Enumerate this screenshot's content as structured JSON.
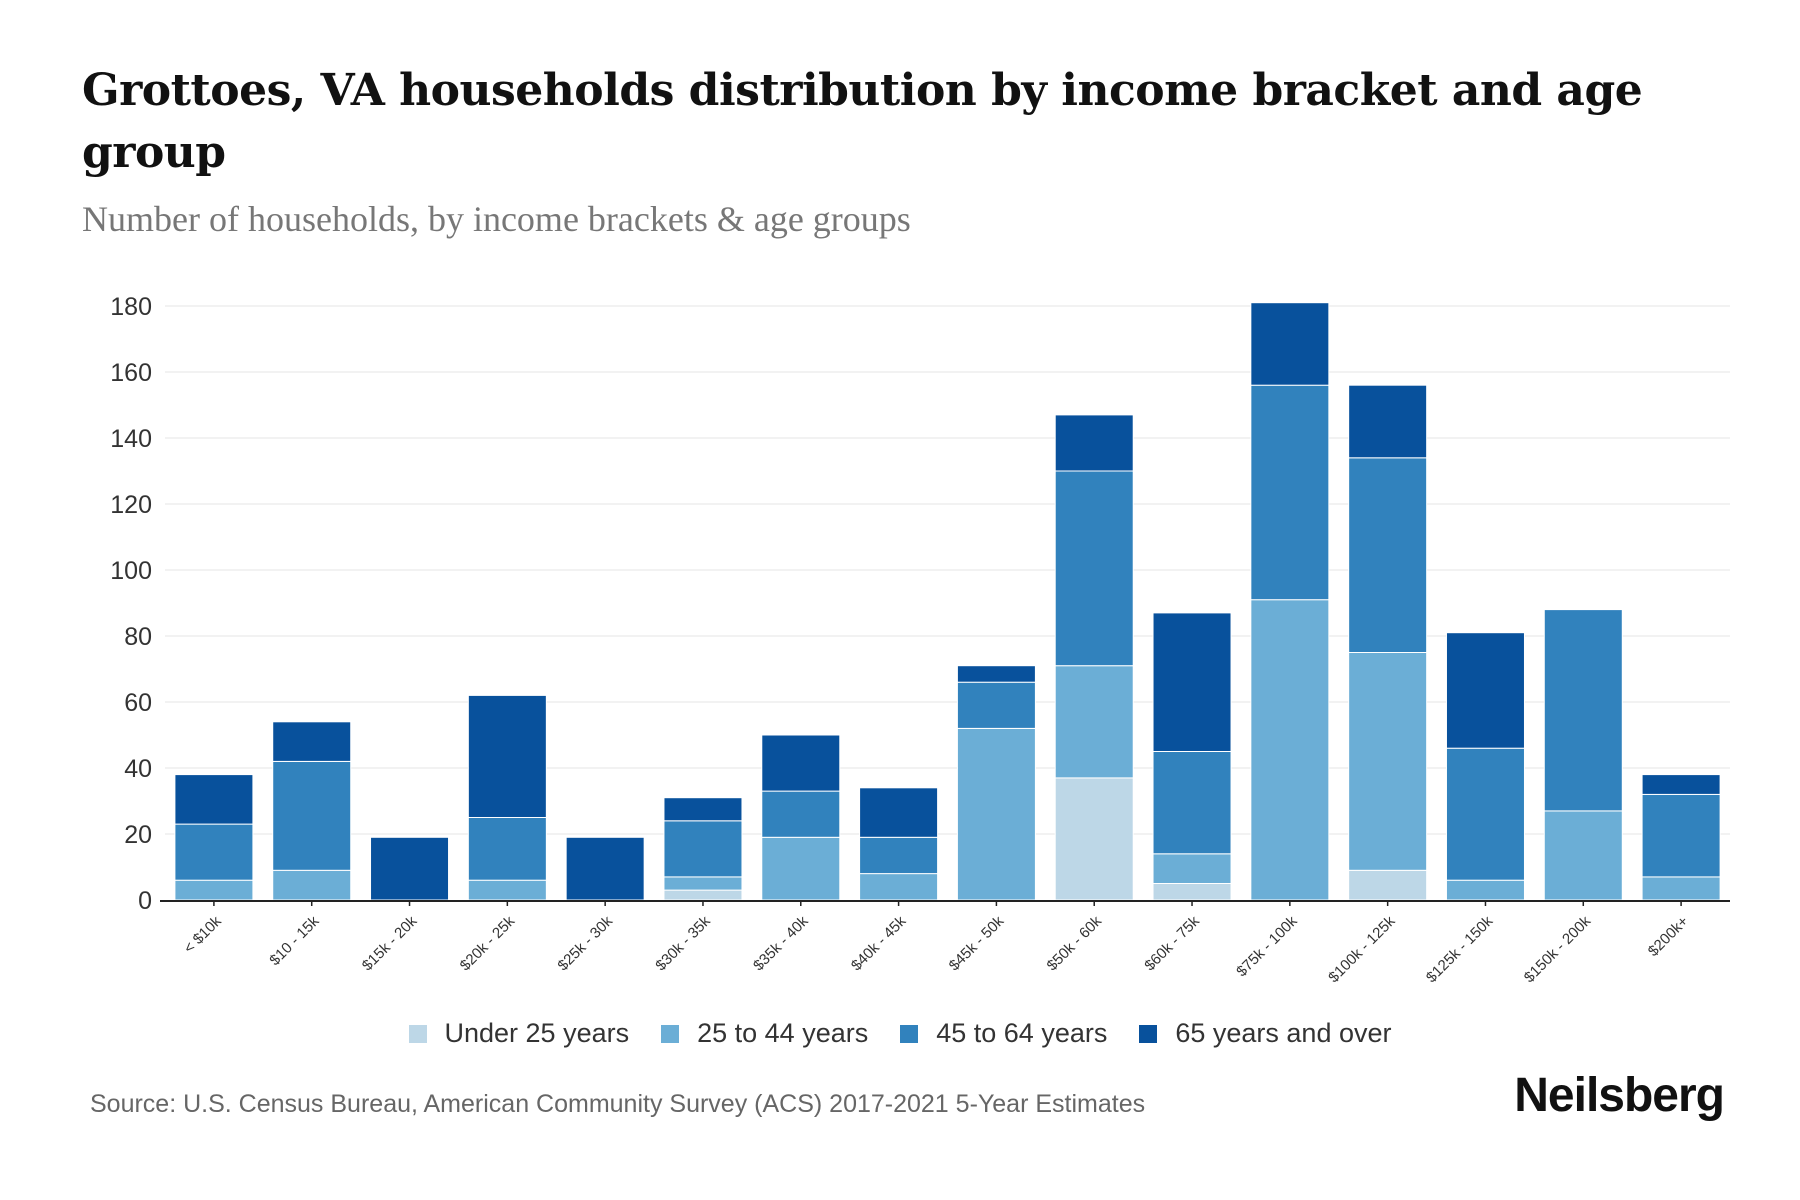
{
  "header": {
    "title": "Grottoes, VA households distribution by income bracket and age group",
    "subtitle": "Number of households, by income brackets & age groups"
  },
  "footer": {
    "source": "Source: U.S. Census Bureau, American Community Survey (ACS) 2017-2021 5-Year Estimates",
    "brand": "Neilsberg"
  },
  "chart_data": {
    "type": "bar",
    "stacked": true,
    "title": "Grottoes, VA households distribution by income bracket and age group",
    "subtitle": "Number of households, by income brackets & age groups",
    "xlabel": "",
    "ylabel": "",
    "ylim": [
      0,
      180
    ],
    "yticks": [
      0,
      20,
      40,
      60,
      80,
      100,
      120,
      140,
      160,
      180
    ],
    "grid": true,
    "legend_position": "bottom",
    "categories": [
      "< $10k",
      "$10 - 15k",
      "$15k - 20k",
      "$20k - 25k",
      "$25k - 30k",
      "$30k - 35k",
      "$35k - 40k",
      "$40k - 45k",
      "$45k - 50k",
      "$50k - 60k",
      "$60k - 75k",
      "$75k - 100k",
      "$100k - 125k",
      "$125k - 150k",
      "$150k - 200k",
      "$200k+"
    ],
    "series": [
      {
        "name": "Under 25 years",
        "color": "#BDD7E7",
        "values": [
          0,
          0,
          0,
          0,
          0,
          3,
          0,
          0,
          0,
          37,
          5,
          0,
          9,
          0,
          0,
          0
        ]
      },
      {
        "name": "25 to 44 years",
        "color": "#6BAED6",
        "values": [
          6,
          9,
          0,
          6,
          0,
          4,
          19,
          8,
          52,
          34,
          9,
          91,
          66,
          6,
          27,
          7
        ]
      },
      {
        "name": "45 to 64 years",
        "color": "#3182BD",
        "values": [
          17,
          33,
          0,
          19,
          0,
          17,
          14,
          11,
          14,
          59,
          31,
          65,
          59,
          40,
          61,
          25
        ]
      },
      {
        "name": "65 years and over",
        "color": "#08519C",
        "values": [
          15,
          12,
          19,
          37,
          19,
          7,
          17,
          15,
          5,
          17,
          42,
          25,
          22,
          35,
          0,
          6
        ]
      }
    ]
  }
}
